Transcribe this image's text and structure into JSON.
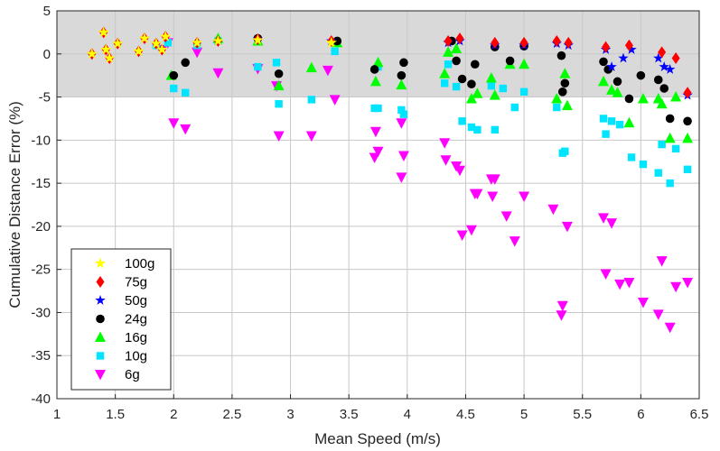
{
  "chart_data": {
    "type": "scatter",
    "title": "",
    "xlabel": "Mean Speed (m/s)",
    "ylabel": "Cumulative Distance Error (%)",
    "xlim": [
      1,
      6.5
    ],
    "ylim": [
      -40,
      5
    ],
    "xticks": [
      1,
      1.5,
      2,
      2.5,
      3,
      3.5,
      4,
      4.5,
      5,
      5.5,
      6,
      6.5
    ],
    "xtick_labels": [
      "1",
      "1.5",
      "2",
      "2.5",
      "3",
      "3.5",
      "4",
      "4.5",
      "5",
      "5.5",
      "6",
      "6.5"
    ],
    "yticks": [
      5,
      0,
      -5,
      -10,
      -15,
      -20,
      -25,
      -30,
      -35,
      -40
    ],
    "ytick_labels": [
      "5",
      "0",
      "-5",
      "-10",
      "-15",
      "-20",
      "-25",
      "-30",
      "-35",
      "-40"
    ],
    "grid": true,
    "shaded_band": {
      "y_from": -5,
      "y_to": 5,
      "color": "#d9d9d9"
    },
    "legend_position": "bottom-left",
    "series": [
      {
        "name": "100g",
        "marker": "star",
        "color": "#ffff00",
        "points": [
          [
            1.3,
            0
          ],
          [
            1.4,
            2.5
          ],
          [
            1.42,
            0.5
          ],
          [
            1.45,
            -0.5
          ],
          [
            1.52,
            1.2
          ],
          [
            1.7,
            0.3
          ],
          [
            1.75,
            1.8
          ],
          [
            1.85,
            1.2
          ],
          [
            1.9,
            0.5
          ],
          [
            1.93,
            2
          ],
          [
            2.2,
            1.3
          ],
          [
            2.38,
            1.5
          ],
          [
            2.72,
            1.6
          ],
          [
            3.35,
            1.3
          ]
        ]
      },
      {
        "name": "75g",
        "marker": "diamond",
        "color": "#ff0000",
        "points": [
          [
            1.3,
            0
          ],
          [
            1.4,
            2.5
          ],
          [
            1.42,
            0.5
          ],
          [
            1.45,
            -0.5
          ],
          [
            1.52,
            1.2
          ],
          [
            1.7,
            0.3
          ],
          [
            1.75,
            1.8
          ],
          [
            1.85,
            1.2
          ],
          [
            1.9,
            0.5
          ],
          [
            1.93,
            2
          ],
          [
            2.2,
            1.3
          ],
          [
            2.38,
            1.5
          ],
          [
            2.72,
            1.7
          ],
          [
            3.35,
            1.5
          ],
          [
            4.35,
            1.5
          ],
          [
            4.45,
            1.8
          ],
          [
            4.75,
            1.3
          ],
          [
            5.0,
            1.3
          ],
          [
            5.28,
            1.5
          ],
          [
            5.38,
            1.3
          ],
          [
            5.7,
            0.8
          ],
          [
            5.9,
            1
          ],
          [
            6.18,
            0.2
          ],
          [
            6.3,
            -0.5
          ],
          [
            6.4,
            -4.5
          ]
        ]
      },
      {
        "name": "50g",
        "marker": "pentagram",
        "color": "#0000ff",
        "points": [
          [
            1.3,
            0
          ],
          [
            1.4,
            2.5
          ],
          [
            1.42,
            0.5
          ],
          [
            1.45,
            -0.5
          ],
          [
            1.52,
            1.2
          ],
          [
            1.7,
            0.3
          ],
          [
            1.75,
            1.8
          ],
          [
            1.85,
            1.2
          ],
          [
            1.9,
            0.5
          ],
          [
            1.93,
            2
          ],
          [
            2.2,
            1.3
          ],
          [
            2.38,
            1.5
          ],
          [
            2.72,
            1.7
          ],
          [
            3.35,
            1.5
          ],
          [
            4.35,
            1.3
          ],
          [
            4.45,
            1.5
          ],
          [
            4.75,
            1.0
          ],
          [
            5.0,
            1.0
          ],
          [
            5.28,
            1.2
          ],
          [
            5.38,
            1.0
          ],
          [
            5.7,
            0.5
          ],
          [
            5.75,
            -1.5
          ],
          [
            5.85,
            -0.5
          ],
          [
            5.92,
            0.5
          ],
          [
            6.15,
            -0.5
          ],
          [
            6.2,
            -1.5
          ],
          [
            6.25,
            -1.8
          ],
          [
            6.4,
            -4.8
          ]
        ]
      },
      {
        "name": "24g",
        "marker": "circle",
        "color": "#000000",
        "points": [
          [
            2.0,
            -2.5
          ],
          [
            2.1,
            -1.0
          ],
          [
            2.72,
            1.8
          ],
          [
            2.9,
            -2.3
          ],
          [
            3.4,
            1.5
          ],
          [
            3.72,
            -1.8
          ],
          [
            3.95,
            -2.5
          ],
          [
            3.97,
            -1.0
          ],
          [
            4.38,
            1.5
          ],
          [
            4.42,
            -0.8
          ],
          [
            4.47,
            -2.9
          ],
          [
            4.55,
            -3.5
          ],
          [
            4.58,
            -1.2
          ],
          [
            4.75,
            0.8
          ],
          [
            4.88,
            -0.8
          ],
          [
            5.0,
            0.9
          ],
          [
            5.32,
            -0.2
          ],
          [
            5.33,
            -4.4
          ],
          [
            5.35,
            -3.4
          ],
          [
            5.68,
            -0.9
          ],
          [
            5.72,
            -1.8
          ],
          [
            5.8,
            -3.2
          ],
          [
            5.9,
            -5.2
          ],
          [
            6.0,
            -2.5
          ],
          [
            6.15,
            -3.0
          ],
          [
            6.2,
            -4.0
          ],
          [
            6.25,
            -7.5
          ],
          [
            6.4,
            -7.8
          ]
        ]
      },
      {
        "name": "16g",
        "marker": "triangle-up",
        "color": "#00ff00",
        "points": [
          [
            1.98,
            -2.5
          ],
          [
            2.38,
            1.8
          ],
          [
            2.72,
            1.5
          ],
          [
            2.9,
            -3.7
          ],
          [
            3.18,
            -1.6
          ],
          [
            3.4,
            1.3
          ],
          [
            3.73,
            -3.2
          ],
          [
            3.75,
            -1.0
          ],
          [
            3.95,
            -3.6
          ],
          [
            4.32,
            -2.3
          ],
          [
            4.35,
            0.2
          ],
          [
            4.42,
            0.6
          ],
          [
            4.55,
            -5.2
          ],
          [
            4.6,
            -4.6
          ],
          [
            4.72,
            -2.8
          ],
          [
            4.75,
            -4.8
          ],
          [
            4.88,
            -1.2
          ],
          [
            5.0,
            -1.2
          ],
          [
            5.28,
            -5.2
          ],
          [
            5.35,
            -2.3
          ],
          [
            5.37,
            -6.0
          ],
          [
            5.68,
            -3.2
          ],
          [
            5.75,
            -4.2
          ],
          [
            5.8,
            -4.5
          ],
          [
            5.9,
            -8.0
          ],
          [
            6.02,
            -5.2
          ],
          [
            6.15,
            -5.2
          ],
          [
            6.18,
            -5.8
          ],
          [
            6.25,
            -9.8
          ],
          [
            6.3,
            -5.0
          ],
          [
            6.4,
            -9.8
          ]
        ]
      },
      {
        "name": "10g",
        "marker": "square",
        "color": "#00e5ff",
        "points": [
          [
            1.85,
            1.0
          ],
          [
            1.95,
            1.3
          ],
          [
            2.0,
            -4.0
          ],
          [
            2.1,
            -4.5
          ],
          [
            2.2,
            1.0
          ],
          [
            2.38,
            1.5
          ],
          [
            2.72,
            -1.5
          ],
          [
            2.88,
            -1.0
          ],
          [
            2.9,
            -5.8
          ],
          [
            3.18,
            -5.3
          ],
          [
            3.38,
            0.3
          ],
          [
            3.72,
            -6.3
          ],
          [
            3.75,
            -6.3
          ],
          [
            3.75,
            -1.5
          ],
          [
            3.95,
            -6.5
          ],
          [
            3.97,
            -7.0
          ],
          [
            4.32,
            -3.4
          ],
          [
            4.35,
            -1.2
          ],
          [
            4.42,
            -3.8
          ],
          [
            4.47,
            -7.8
          ],
          [
            4.55,
            -8.5
          ],
          [
            4.6,
            -8.8
          ],
          [
            4.72,
            -3.7
          ],
          [
            4.75,
            -8.8
          ],
          [
            4.82,
            -4.0
          ],
          [
            4.92,
            -6.2
          ],
          [
            5.0,
            -4.4
          ],
          [
            5.28,
            -6.2
          ],
          [
            5.33,
            -11.5
          ],
          [
            5.35,
            -11.3
          ],
          [
            5.68,
            -7.5
          ],
          [
            5.7,
            -9.3
          ],
          [
            5.75,
            -7.8
          ],
          [
            5.82,
            -8.2
          ],
          [
            5.92,
            -12.0
          ],
          [
            6.02,
            -12.8
          ],
          [
            6.15,
            -13.8
          ],
          [
            6.18,
            -10.5
          ],
          [
            6.25,
            -15.0
          ],
          [
            6.3,
            -11.0
          ],
          [
            6.4,
            -13.4
          ]
        ]
      },
      {
        "name": "6g",
        "marker": "triangle-down",
        "color": "#ff00ff",
        "points": [
          [
            1.9,
            0.5
          ],
          [
            1.95,
            1.3
          ],
          [
            2.0,
            -8.0
          ],
          [
            2.1,
            -8.7
          ],
          [
            2.2,
            0.2
          ],
          [
            2.38,
            -2.2
          ],
          [
            2.72,
            -1.7
          ],
          [
            2.88,
            -3.7
          ],
          [
            2.9,
            -9.5
          ],
          [
            3.18,
            -9.5
          ],
          [
            3.32,
            -1.9
          ],
          [
            3.38,
            -5.3
          ],
          [
            3.72,
            -12.0
          ],
          [
            3.73,
            -9.0
          ],
          [
            3.75,
            -11.3
          ],
          [
            3.95,
            -8.0
          ],
          [
            3.95,
            -14.3
          ],
          [
            3.97,
            -11.8
          ],
          [
            4.32,
            -10.3
          ],
          [
            4.33,
            -12.3
          ],
          [
            4.42,
            -13.0
          ],
          [
            4.45,
            -13.5
          ],
          [
            4.47,
            -21.0
          ],
          [
            4.55,
            -20.4
          ],
          [
            4.58,
            -16.2
          ],
          [
            4.6,
            -16.2
          ],
          [
            4.72,
            -14.5
          ],
          [
            4.73,
            -16.5
          ],
          [
            4.75,
            -14.5
          ],
          [
            4.85,
            -18.8
          ],
          [
            4.92,
            -21.7
          ],
          [
            5.0,
            -16.5
          ],
          [
            5.25,
            -18.0
          ],
          [
            5.32,
            -30.3
          ],
          [
            5.33,
            -29.2
          ],
          [
            5.37,
            -20.0
          ],
          [
            5.68,
            -19.0
          ],
          [
            5.7,
            -25.5
          ],
          [
            5.75,
            -19.6
          ],
          [
            5.82,
            -26.7
          ],
          [
            5.9,
            -26.5
          ],
          [
            6.02,
            -28.8
          ],
          [
            6.15,
            -30.2
          ],
          [
            6.18,
            -24.0
          ],
          [
            6.25,
            -31.7
          ],
          [
            6.3,
            -27.0
          ],
          [
            6.4,
            -26.5
          ]
        ]
      }
    ]
  }
}
